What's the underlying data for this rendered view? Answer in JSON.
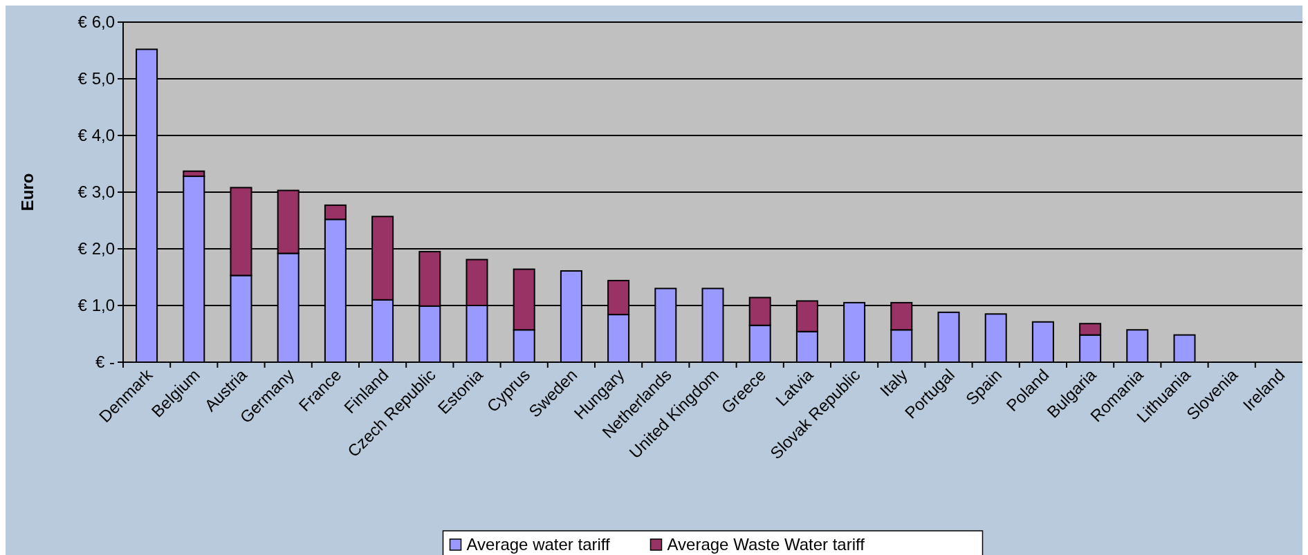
{
  "chart_data": {
    "type": "bar",
    "stacked": true,
    "ylabel": "Euro",
    "categories": [
      "Denmark",
      "Belgium",
      "Austria",
      "Germany",
      "France",
      "Finland",
      "Czech Republic",
      "Estonia",
      "Cyprus",
      "Sweden",
      "Hungary",
      "Netherlands",
      "United Kingdom",
      "Greece",
      "Latvia",
      "Slovak Republic",
      "Italy",
      "Portugal",
      "Spain",
      "Poland",
      "Bulgaria",
      "Romania",
      "Lithuania",
      "Slovenia",
      "Ireland"
    ],
    "series": [
      {
        "name": "Average water tariff",
        "color": "#9999ff",
        "values": [
          5.52,
          3.28,
          1.53,
          1.92,
          2.52,
          1.1,
          0.99,
          1.0,
          0.57,
          1.61,
          0.84,
          1.3,
          1.3,
          0.65,
          0.54,
          1.05,
          0.57,
          0.88,
          0.85,
          0.71,
          0.48,
          0.57,
          0.48,
          null,
          null
        ]
      },
      {
        "name": "Average Waste Water tariff",
        "color": "#993366",
        "values": [
          null,
          0.09,
          1.55,
          1.11,
          0.25,
          1.47,
          0.96,
          0.81,
          1.07,
          null,
          0.6,
          null,
          null,
          0.49,
          0.54,
          null,
          0.48,
          null,
          null,
          null,
          0.2,
          null,
          null,
          null,
          null
        ]
      }
    ],
    "ylim": [
      0,
      6
    ],
    "yticks": [
      {
        "value": 0,
        "label": "€ -"
      },
      {
        "value": 1,
        "label": "€ 1,0"
      },
      {
        "value": 2,
        "label": "€ 2,0"
      },
      {
        "value": 3,
        "label": "€ 3,0"
      },
      {
        "value": 4,
        "label": "€ 4,0"
      },
      {
        "value": 5,
        "label": "€ 5,0"
      },
      {
        "value": 6,
        "label": "€ 6,0"
      }
    ],
    "grid": "y",
    "legend": "bottom"
  }
}
